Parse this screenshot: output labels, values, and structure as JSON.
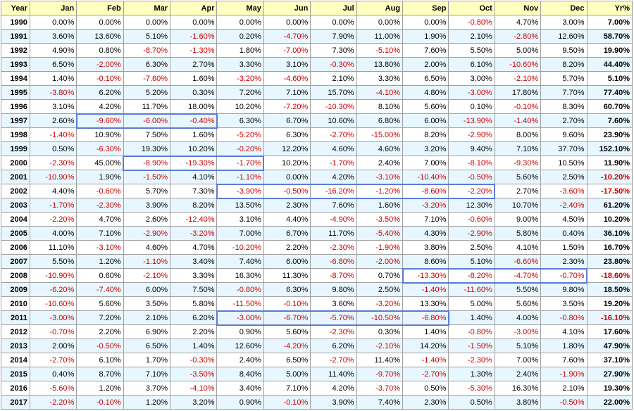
{
  "header": [
    "Year",
    "Jan",
    "Feb",
    "Mar",
    "Apr",
    "May",
    "Jun",
    "Jul",
    "Aug",
    "Sep",
    "Oct",
    "Nov",
    "Dec",
    "Yr%"
  ],
  "accent_colors": {
    "header_bg": "#ffffc0",
    "alt_row_bg": "#e8f7ff",
    "negative_text": "#cc0000",
    "highlight_border": "#5b7bd5"
  },
  "rows": [
    [
      "1990",
      "0.00%",
      "0.00%",
      "0.00%",
      "0.00%",
      "0.00%",
      "0.00%",
      "0.00%",
      "0.00%",
      "0.00%",
      "-0.80%",
      "4.70%",
      "3.00%",
      "7.00%"
    ],
    [
      "1991",
      "3.60%",
      "13.60%",
      "5.10%",
      "-1.60%",
      "0.20%",
      "-4.70%",
      "7.90%",
      "11.00%",
      "1.90%",
      "2.10%",
      "-2.80%",
      "12.60%",
      "58.70%"
    ],
    [
      "1992",
      "4.90%",
      "0.80%",
      "-8.70%",
      "-1.30%",
      "1.80%",
      "-7.00%",
      "7.30%",
      "-5.10%",
      "7.60%",
      "5.50%",
      "5.00%",
      "9.50%",
      "19.90%"
    ],
    [
      "1993",
      "6.50%",
      "-2.00%",
      "6.30%",
      "2.70%",
      "3.30%",
      "3.10%",
      "-0.30%",
      "13.80%",
      "2.00%",
      "6.10%",
      "-10.60%",
      "8.20%",
      "44.40%"
    ],
    [
      "1994",
      "1.40%",
      "-0.10%",
      "-7.60%",
      "1.60%",
      "-3.20%",
      "-4.60%",
      "2.10%",
      "3.30%",
      "6.50%",
      "3.00%",
      "-2.10%",
      "5.70%",
      "5.10%"
    ],
    [
      "1995",
      "-3.80%",
      "6.20%",
      "5.20%",
      "0.30%",
      "7.20%",
      "7.10%",
      "15.70%",
      "-4.10%",
      "4.80%",
      "-3.00%",
      "17.80%",
      "7.70%",
      "77.40%"
    ],
    [
      "1996",
      "3.10%",
      "4.20%",
      "11.70%",
      "18.00%",
      "10.20%",
      "-7.20%",
      "-10.30%",
      "8.10%",
      "5.60%",
      "0.10%",
      "-0.10%",
      "8.30%",
      "60.70%"
    ],
    [
      "1997",
      "2.60%",
      "-9.60%",
      "-6.00%",
      "-0.40%",
      "6.30%",
      "6.70%",
      "10.60%",
      "6.80%",
      "6.00%",
      "-13.90%",
      "-1.40%",
      "2.70%",
      "7.60%"
    ],
    [
      "1998",
      "-1.40%",
      "10.90%",
      "7.50%",
      "1.60%",
      "-5.20%",
      "6.30%",
      "-2.70%",
      "-15.00%",
      "8.20%",
      "-2.90%",
      "8.00%",
      "9.60%",
      "23.90%"
    ],
    [
      "1999",
      "0.50%",
      "-6.30%",
      "19.30%",
      "10.20%",
      "-0.20%",
      "12.20%",
      "4.60%",
      "4.60%",
      "3.20%",
      "9.40%",
      "7.10%",
      "37.70%",
      "152.10%"
    ],
    [
      "2000",
      "-2.30%",
      "45.00%",
      "-8.90%",
      "-19.30%",
      "-1.70%",
      "10.20%",
      "-1.70%",
      "2.40%",
      "7.00%",
      "-8.10%",
      "-9.30%",
      "10.50%",
      "11.90%"
    ],
    [
      "2001",
      "-10.90%",
      "1.90%",
      "-1.50%",
      "4.10%",
      "-1.10%",
      "0.00%",
      "4.20%",
      "-3.10%",
      "-10.40%",
      "-0.50%",
      "5.60%",
      "2.50%",
      "-10.20%"
    ],
    [
      "2002",
      "4.40%",
      "-0.60%",
      "5.70%",
      "7.30%",
      "-3.90%",
      "-0.50%",
      "-16.20%",
      "-1.20%",
      "-8.60%",
      "-2.20%",
      "2.70%",
      "-3.60%",
      "-17.50%"
    ],
    [
      "2003",
      "-1.70%",
      "-2.30%",
      "3.90%",
      "8.20%",
      "13.50%",
      "2.30%",
      "7.60%",
      "1.60%",
      "-3.20%",
      "12.30%",
      "10.70%",
      "-2.40%",
      "61.20%"
    ],
    [
      "2004",
      "-2.20%",
      "4.70%",
      "2.60%",
      "-12.40%",
      "3.10%",
      "4.40%",
      "-4.90%",
      "-3.50%",
      "7.10%",
      "-0.60%",
      "9.00%",
      "4.50%",
      "10.20%"
    ],
    [
      "2005",
      "4.00%",
      "7.10%",
      "-2.90%",
      "-3.20%",
      "7.00%",
      "6.70%",
      "11.70%",
      "-5.40%",
      "4.30%",
      "-2.90%",
      "5.80%",
      "0.40%",
      "36.10%"
    ],
    [
      "2006",
      "11.10%",
      "-3.10%",
      "4.60%",
      "4.70%",
      "-10.20%",
      "2.20%",
      "-2.30%",
      "-1.90%",
      "3.80%",
      "2.50%",
      "4.10%",
      "1.50%",
      "16.70%"
    ],
    [
      "2007",
      "5.50%",
      "1.20%",
      "-1.10%",
      "3.40%",
      "7.40%",
      "6.00%",
      "-6.80%",
      "-2.00%",
      "8.60%",
      "5.10%",
      "-6.60%",
      "2.30%",
      "23.80%"
    ],
    [
      "2008",
      "-10.90%",
      "0.60%",
      "-2.10%",
      "3.30%",
      "16.30%",
      "11.30%",
      "-8.70%",
      "0.70%",
      "-13.30%",
      "-8.20%",
      "-4.70%",
      "-0.70%",
      "-18.60%"
    ],
    [
      "2009",
      "-6.20%",
      "-7.40%",
      "6.00%",
      "7.50%",
      "-0.80%",
      "6.30%",
      "9.80%",
      "2.50%",
      "-1.40%",
      "-11.60%",
      "5.50%",
      "9.80%",
      "18.50%"
    ],
    [
      "2010",
      "-10.60%",
      "5.60%",
      "3.50%",
      "5.80%",
      "-11.50%",
      "-0.10%",
      "3.60%",
      "-3.20%",
      "13.30%",
      "5.00%",
      "5.60%",
      "3.50%",
      "19.20%"
    ],
    [
      "2011",
      "-3.00%",
      "7.20%",
      "2.10%",
      "6.20%",
      "-3.00%",
      "-6.70%",
      "-5.70%",
      "-10.50%",
      "-6.80%",
      "1.40%",
      "4.00%",
      "-0.80%",
      "-16.10%"
    ],
    [
      "2012",
      "-0.70%",
      "2.20%",
      "6.90%",
      "2.20%",
      "0.90%",
      "5.60%",
      "-2.30%",
      "0.30%",
      "1.40%",
      "-0.80%",
      "-3.00%",
      "4.10%",
      "17.60%"
    ],
    [
      "2013",
      "2.00%",
      "-0.50%",
      "6.50%",
      "1.40%",
      "12.60%",
      "-4.20%",
      "6.20%",
      "-2.10%",
      "14.20%",
      "-1.50%",
      "5.10%",
      "1.80%",
      "47.90%"
    ],
    [
      "2014",
      "-2.70%",
      "6.10%",
      "1.70%",
      "-0.30%",
      "2.40%",
      "6.50%",
      "-2.70%",
      "11.40%",
      "-1.40%",
      "-2.30%",
      "7.00%",
      "7.60%",
      "37.10%"
    ],
    [
      "2015",
      "0.40%",
      "8.70%",
      "7.10%",
      "-3.50%",
      "8.40%",
      "5.00%",
      "11.40%",
      "-9.70%",
      "-2.70%",
      "1.30%",
      "2.40%",
      "-1.90%",
      "27.90%"
    ],
    [
      "2016",
      "-5.60%",
      "1.20%",
      "3.70%",
      "-4.10%",
      "3.40%",
      "7.10%",
      "4.20%",
      "-3.70%",
      "0.50%",
      "-5.30%",
      "16.30%",
      "2.10%",
      "19.30%"
    ],
    [
      "2017",
      "-2.20%",
      "-0.10%",
      "1.20%",
      "3.20%",
      "0.90%",
      "-0.10%",
      "3.90%",
      "7.40%",
      "2.30%",
      "0.50%",
      "3.80%",
      "-0.50%",
      "22.00%"
    ]
  ],
  "highlights": [
    {
      "year": "1997",
      "from": "Feb",
      "to": "Apr"
    },
    {
      "year": "2000",
      "from": "Mar",
      "to": "May"
    },
    {
      "year": "2002",
      "from": "May",
      "to": "Oct"
    },
    {
      "year": "2008",
      "from": "Sep",
      "to": "Dec"
    },
    {
      "year": "2011",
      "from": "May",
      "to": "Sep"
    }
  ]
}
